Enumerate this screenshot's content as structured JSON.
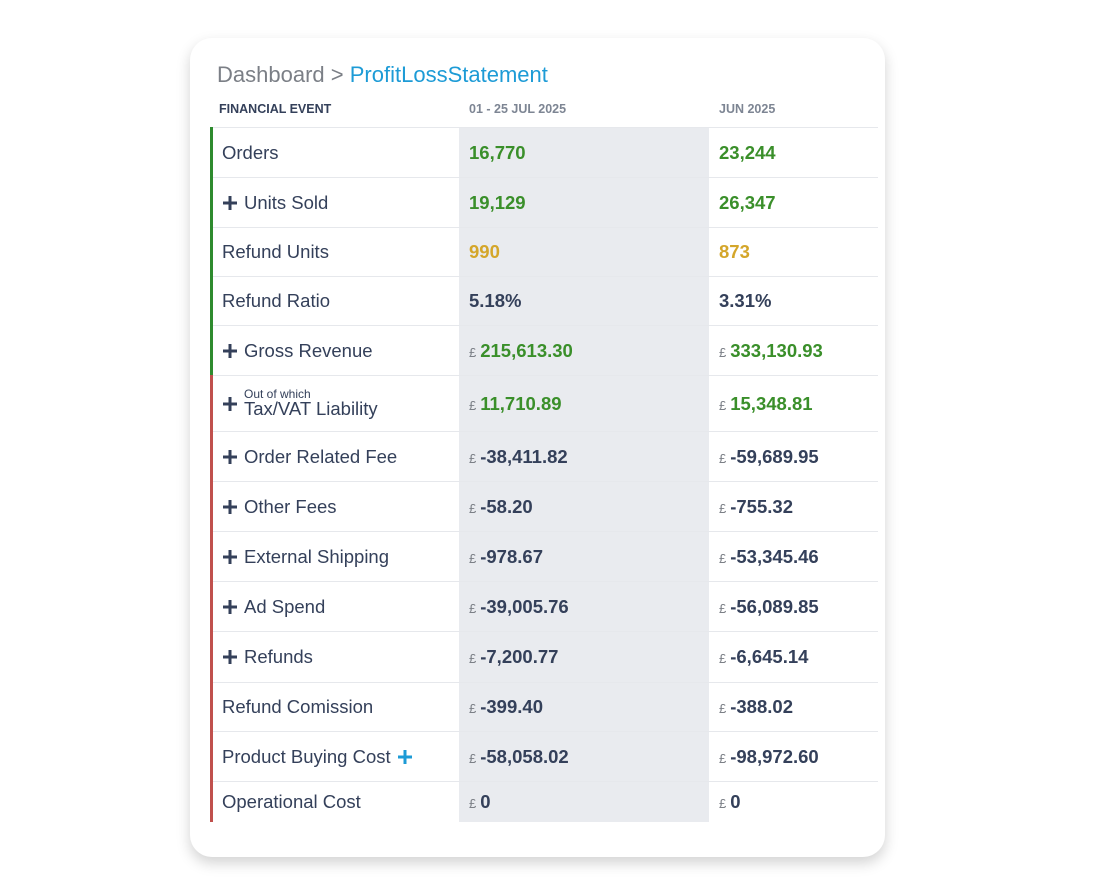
{
  "breadcrumb": {
    "root": "Dashboard",
    "separator": ">",
    "current": "ProfitLossStatement"
  },
  "table": {
    "headers": [
      "FINANCIAL EVENT",
      "01 - 25 JUL 2025",
      "JUN 2025"
    ],
    "rows": [
      {
        "label": "Orders",
        "accent": "#2e8b2e",
        "tone": "#3a8f2a",
        "values": [
          {
            "amount": "16,770"
          },
          {
            "amount": "23,244"
          }
        ]
      },
      {
        "label": "Units Sold",
        "icon": "before",
        "accent": "#2e8b2e",
        "tone": "#3a8f2a",
        "values": [
          {
            "amount": "19,129"
          },
          {
            "amount": "26,347"
          }
        ]
      },
      {
        "label": "Refund Units",
        "accent": "#2e8b2e",
        "tone": "#d4a62a",
        "values": [
          {
            "amount": "990"
          },
          {
            "amount": "873"
          }
        ]
      },
      {
        "label": "Refund Ratio",
        "accent": "#2e8b2e",
        "tone": "#34405a",
        "values": [
          {
            "amount": "5.18%"
          },
          {
            "amount": "3.31%"
          }
        ]
      },
      {
        "label": "Gross Revenue",
        "icon": "before",
        "accent": "#2e8b2e",
        "tone": "#3a8f2a",
        "values": [
          {
            "currency": "£",
            "amount": "215,613.30"
          },
          {
            "currency": "£",
            "amount": "333,130.93"
          }
        ]
      },
      {
        "label": "Tax/VAT Liability",
        "sublabel": "Out of which",
        "icon": "before",
        "accent": "#c0504d",
        "tone": "#3a8f2a",
        "values": [
          {
            "currency": "£",
            "amount": "11,710.89"
          },
          {
            "currency": "£",
            "amount": "15,348.81"
          }
        ]
      },
      {
        "label": "Order Related Fee",
        "icon": "before",
        "accent": "#c0504d",
        "tone": "#34405a",
        "values": [
          {
            "currency": "£",
            "amount": "-38,411.82"
          },
          {
            "currency": "£",
            "amount": "-59,689.95"
          }
        ]
      },
      {
        "label": "Other Fees",
        "icon": "before",
        "accent": "#c0504d",
        "tone": "#34405a",
        "values": [
          {
            "currency": "£",
            "amount": "-58.20"
          },
          {
            "currency": "£",
            "amount": "-755.32"
          }
        ]
      },
      {
        "label": "External Shipping",
        "icon": "before",
        "accent": "#c0504d",
        "tone": "#34405a",
        "values": [
          {
            "currency": "£",
            "amount": "-978.67"
          },
          {
            "currency": "£",
            "amount": "-53,345.46"
          }
        ]
      },
      {
        "label": "Ad Spend",
        "icon": "before",
        "accent": "#c0504d",
        "tone": "#34405a",
        "values": [
          {
            "currency": "£",
            "amount": "-39,005.76"
          },
          {
            "currency": "£",
            "amount": "-56,089.85"
          }
        ]
      },
      {
        "label": "Refunds",
        "icon": "before",
        "accent": "#c0504d",
        "tone": "#34405a",
        "values": [
          {
            "currency": "£",
            "amount": "-7,200.77"
          },
          {
            "currency": "£",
            "amount": "-6,645.14"
          }
        ]
      },
      {
        "label": "Refund Comission",
        "accent": "#c0504d",
        "tone": "#34405a",
        "values": [
          {
            "currency": "£",
            "amount": "-399.40"
          },
          {
            "currency": "£",
            "amount": "-388.02"
          }
        ]
      },
      {
        "label": "Product Buying Cost",
        "icon": "after",
        "accent": "#c0504d",
        "tone": "#34405a",
        "values": [
          {
            "currency": "£",
            "amount": "-58,058.02"
          },
          {
            "currency": "£",
            "amount": "-98,972.60"
          }
        ]
      },
      {
        "label": "Operational Cost",
        "accent": "#c0504d",
        "tone": "#34405a",
        "values": [
          {
            "currency": "£",
            "amount": "0"
          },
          {
            "currency": "£",
            "amount": "0"
          }
        ]
      }
    ]
  }
}
